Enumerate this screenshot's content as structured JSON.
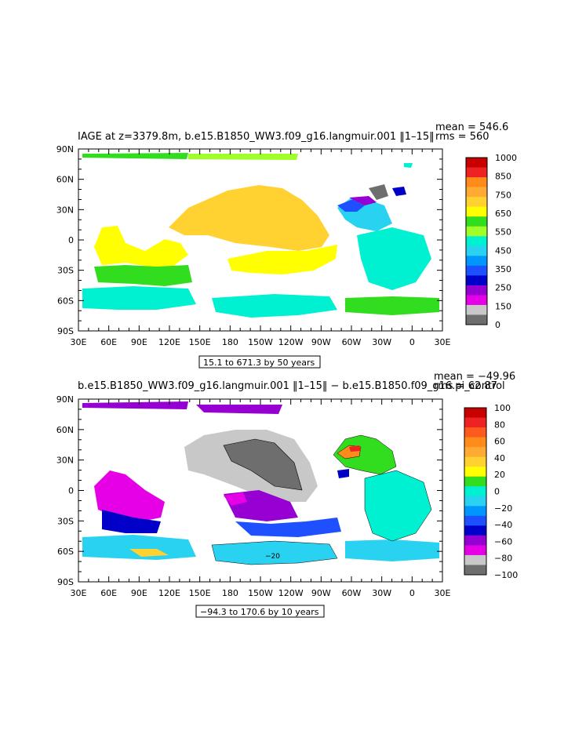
{
  "chart_data": [
    {
      "type": "heatmap",
      "title": "IAGE at z=3379.8m, b.e15.B1850_WW3.f09_g16.langmuir.001 ‖1–15‖",
      "stats": {
        "mean": "mean = 546.6",
        "rms": "rms = 560"
      },
      "x_ticks": [
        "30E",
        "60E",
        "90E",
        "120E",
        "150E",
        "180",
        "150W",
        "120W",
        "90W",
        "60W",
        "30W",
        "0",
        "30E"
      ],
      "y_ticks": [
        "90N",
        "60N",
        "30N",
        "0",
        "30S",
        "60S",
        "90S"
      ],
      "colorbar": {
        "labels": [
          "1000",
          "850",
          "750",
          "650",
          "550",
          "450",
          "350",
          "250",
          "150",
          "0"
        ],
        "colors": [
          "#c80000",
          "#ee2222",
          "#ff8c1a",
          "#ffaa33",
          "#ffd232",
          "#ffff00",
          "#32dc1e",
          "#a0ff28",
          "#00f0d2",
          "#28d2f0",
          "#0096ff",
          "#1e50ff",
          "#0000c8",
          "#9600d2",
          "#e600e6",
          "#c8c8c8",
          "#6e6e6e"
        ]
      },
      "contour_info": "15.1 to 671.3 by 50 years"
    },
    {
      "type": "heatmap",
      "title": "b.e15.B1850_WW3.f09_g16.langmuir.001 ‖1–15‖ − b.e15.B1850.f09_g16.pi_control",
      "stats": {
        "mean": "mean = −49.96",
        "rms": "rms = 62.87"
      },
      "x_ticks": [
        "30E",
        "60E",
        "90E",
        "120E",
        "150E",
        "180",
        "150W",
        "120W",
        "90W",
        "60W",
        "30W",
        "0",
        "30E"
      ],
      "y_ticks": [
        "90N",
        "60N",
        "30N",
        "0",
        "30S",
        "60S",
        "90S"
      ],
      "colorbar": {
        "labels": [
          "100",
          "80",
          "60",
          "40",
          "20",
          "0",
          "−20",
          "−40",
          "−60",
          "−80",
          "−100"
        ],
        "colors": [
          "#c80000",
          "#ee2222",
          "#ff5a1e",
          "#ff8c1a",
          "#ffaa33",
          "#ffd232",
          "#ffff00",
          "#32dc1e",
          "#00f0d2",
          "#28d2f0",
          "#0096ff",
          "#1e50ff",
          "#0000c8",
          "#9600d2",
          "#e600e6",
          "#c8c8c8",
          "#6e6e6e"
        ]
      },
      "contour_label": "−20",
      "contour_info": "−94.3 to 170.6 by 10 years"
    }
  ]
}
